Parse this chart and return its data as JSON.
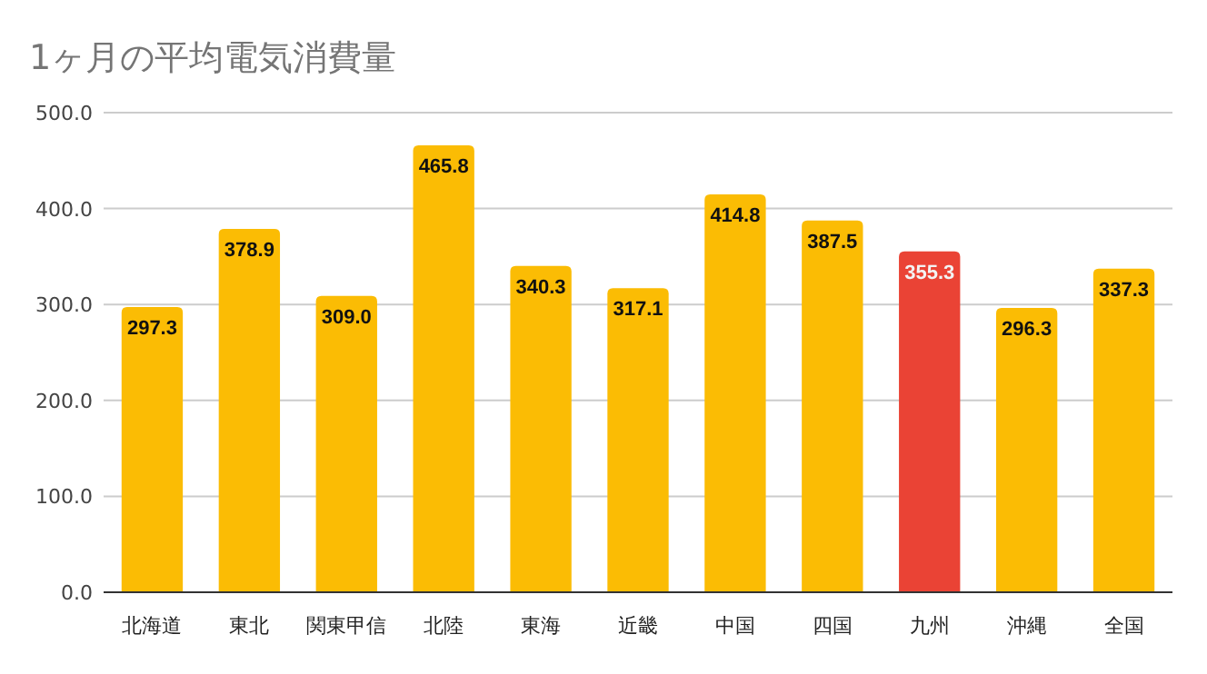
{
  "chart_data": {
    "type": "bar",
    "title": "1ヶ月の平均電気消費量",
    "categories": [
      "北海道",
      "東北",
      "関東甲信",
      "北陸",
      "東海",
      "近畿",
      "中国",
      "四国",
      "九州",
      "沖縄",
      "全国"
    ],
    "values": [
      297.3,
      378.9,
      309.0,
      465.8,
      340.3,
      317.1,
      414.8,
      387.5,
      355.3,
      296.3,
      337.3
    ],
    "colors": [
      "#fbbc04",
      "#fbbc04",
      "#fbbc04",
      "#fbbc04",
      "#fbbc04",
      "#fbbc04",
      "#fbbc04",
      "#fbbc04",
      "#ea4335",
      "#fbbc04",
      "#fbbc04"
    ],
    "ylim": [
      0,
      500
    ],
    "yticks": [
      {
        "value": 0,
        "label": "0.0"
      },
      {
        "value": 100,
        "label": "100.0"
      },
      {
        "value": 200,
        "label": "200.0"
      },
      {
        "value": 300,
        "label": "300.0"
      },
      {
        "value": 400,
        "label": "400.0"
      },
      {
        "value": 500,
        "label": "500.0"
      }
    ],
    "value_labels": [
      "297.3",
      "378.9",
      "309.0",
      "465.8",
      "340.3",
      "317.1",
      "414.8",
      "387.5",
      "355.3",
      "296.3",
      "337.3"
    ],
    "grid": "y"
  }
}
